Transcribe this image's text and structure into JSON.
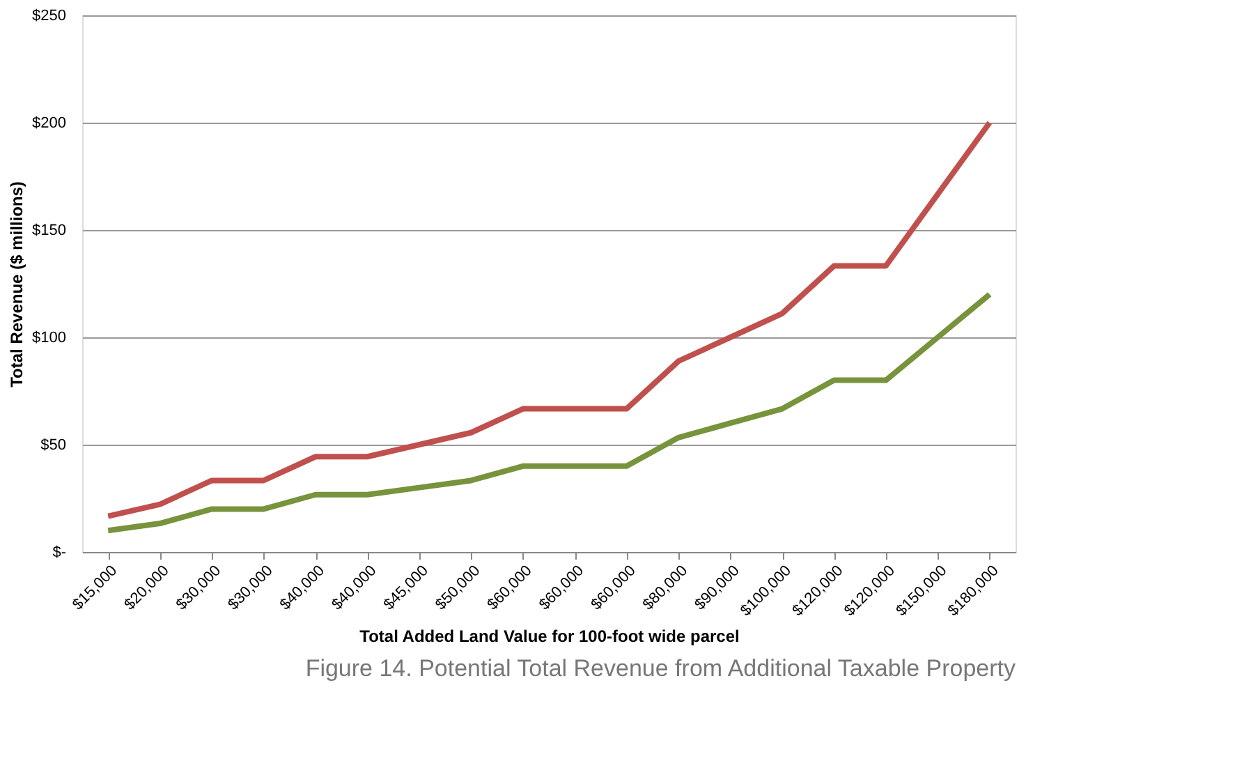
{
  "chart_data": {
    "type": "line",
    "xlabel": "Total Added Land Value for 100-foot wide parcel",
    "ylabel": "Total Revenue ($ millions)",
    "categories": [
      "$15,000",
      "$20,000",
      "$30,000",
      "$30,000",
      "$40,000",
      "$40,000",
      "$45,000",
      "$50,000",
      "$60,000",
      "$60,000",
      "$60,000",
      "$80,000",
      "$90,000",
      "$100,000",
      "$120,000",
      "$120,000",
      "$150,000",
      "$180,000"
    ],
    "series": [
      {
        "color": "#c0504d",
        "values": [
          16.7,
          22.2,
          33.3,
          33.3,
          44.4,
          44.4,
          50,
          55.6,
          66.7,
          66.7,
          66.7,
          88.9,
          100,
          111.1,
          133.3,
          133.3,
          166.7,
          200
        ]
      },
      {
        "color": "#77933c",
        "values": [
          10,
          13.3,
          20,
          20,
          26.7,
          26.7,
          30,
          33.3,
          40,
          40,
          40,
          53.3,
          60,
          66.7,
          80,
          80,
          100,
          120
        ]
      }
    ],
    "ylim": [
      0,
      250
    ],
    "yticks": [
      {
        "value": 0,
        "label": "$-"
      },
      {
        "value": 50,
        "label": "$50"
      },
      {
        "value": 100,
        "label": "$100"
      },
      {
        "value": 150,
        "label": "$150"
      },
      {
        "value": 200,
        "label": "$200"
      },
      {
        "value": 250,
        "label": "$250"
      }
    ],
    "grid": "y",
    "legend": false,
    "marker": "none",
    "line_style": "solid",
    "annotations": [
      "Figure 14. Potential Total Revenue from Additional Taxable Property"
    ]
  }
}
